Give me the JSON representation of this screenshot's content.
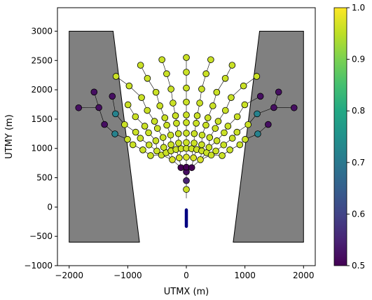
{
  "chart_data": {
    "type": "scatter",
    "title": "",
    "xlabel": "UTMX (m)",
    "ylabel": "UTMY (m)",
    "xlim": [
      -2200,
      2200
    ],
    "ylim": [
      -1000,
      3400
    ],
    "xticks": [
      -2000,
      -1000,
      0,
      1000,
      2000
    ],
    "xtick_labels": [
      "−2000",
      "−1000",
      "0",
      "1000",
      "2000"
    ],
    "yticks": [
      -1000,
      -500,
      0,
      500,
      1000,
      1500,
      2000,
      2500,
      3000
    ],
    "ytick_labels": [
      "−1000",
      "−500",
      "0",
      "500",
      "1000",
      "1500",
      "2000",
      "2500",
      "3000"
    ],
    "grid": false,
    "colorbar": {
      "colormap": "viridis",
      "range": [
        0.5,
        1.0
      ],
      "ticks": [
        0.5,
        0.6,
        0.7,
        0.8,
        0.9,
        1.0
      ],
      "tick_labels": [
        "0.5",
        "0.6",
        "0.7",
        "0.8",
        "0.9",
        "1.0"
      ],
      "placement": "right"
    },
    "polygons": [
      {
        "name": "left-block",
        "fill": "#808080",
        "points": [
          [
            -2000,
            3000
          ],
          [
            -1250,
            3000
          ],
          [
            -800,
            -600
          ],
          [
            -2000,
            -600
          ]
        ]
      },
      {
        "name": "right-block",
        "fill": "#808080",
        "points": [
          [
            1250,
            3000
          ],
          [
            2000,
            3000
          ],
          [
            2000,
            -600
          ],
          [
            800,
            -600
          ]
        ]
      }
    ],
    "well": {
      "x": 0,
      "y_top": -50,
      "y_bottom": -330,
      "color": "#000080"
    },
    "fan": {
      "origin": [
        0,
        150
      ],
      "rows": [
        {
          "radius": 150,
          "angles": [
            0
          ],
          "values": [
            0.96
          ]
        },
        {
          "radius": 300,
          "angles": [
            0
          ],
          "values": [
            0.55
          ]
        },
        {
          "radius": 450,
          "angles": [
            0
          ],
          "values": [
            0.52
          ]
        },
        {
          "radius": 530,
          "angles": [
            -10,
            0,
            10
          ],
          "values": [
            0.5,
            0.5,
            0.5
          ]
        },
        {
          "radius": 700,
          "angles": [
            -20,
            -10,
            0,
            10,
            20
          ],
          "values": [
            0.97,
            0.97,
            0.97,
            0.97,
            0.97
          ]
        },
        {
          "radius": 850,
          "angles": [
            -30,
            -24,
            -18,
            -12,
            -6,
            0,
            6,
            12,
            18,
            24,
            30
          ],
          "values": [
            0.96,
            0.96,
            0.96,
            0.96,
            0.96,
            0.96,
            0.96,
            0.96,
            0.96,
            0.96,
            0.96
          ]
        },
        {
          "radius": 950,
          "angles": [
            -40,
            -32,
            -24,
            -16,
            -8,
            0,
            8,
            16,
            24,
            32,
            40
          ],
          "values": [
            0.96,
            0.96,
            0.96,
            0.96,
            0.96,
            0.96,
            0.96,
            0.96,
            0.96,
            0.96,
            0.96
          ]
        },
        {
          "radius": 1110,
          "angles": [
            -42,
            -35,
            -28,
            -21,
            -14,
            -7,
            0,
            7,
            14,
            21,
            28,
            35,
            42
          ],
          "values": [
            0.96,
            0.96,
            0.96,
            0.96,
            0.96,
            0.96,
            0.96,
            0.96,
            0.96,
            0.96,
            0.96,
            0.96,
            0.96
          ]
        },
        {
          "radius": 1290,
          "angles": [
            -45,
            -37.5,
            -30,
            -22.5,
            -15,
            -7.5,
            0,
            7.5,
            15,
            22.5,
            30,
            37.5,
            45
          ],
          "values": [
            0.96,
            0.96,
            0.96,
            0.96,
            0.96,
            0.96,
            0.96,
            0.96,
            0.96,
            0.96,
            0.96,
            0.96,
            0.96
          ]
        },
        {
          "radius": 1420,
          "angles": [
            -45,
            -37.5,
            -30,
            -22.5,
            -15,
            -7.5,
            0,
            7.5,
            15,
            22.5,
            30,
            37.5,
            45
          ],
          "values": [
            0.96,
            0.96,
            0.96,
            0.96,
            0.96,
            0.96,
            0.96,
            0.96,
            0.96,
            0.96,
            0.96,
            0.96,
            0.96
          ]
        },
        {
          "radius": 1640,
          "angles": [
            -48,
            -40,
            -32,
            -24,
            -16,
            -8,
            0,
            8,
            16,
            24,
            32,
            40,
            48
          ],
          "values": [
            0.72,
            0.96,
            0.96,
            0.96,
            0.96,
            0.96,
            0.96,
            0.96,
            0.96,
            0.96,
            0.96,
            0.96,
            0.72
          ]
        },
        {
          "radius": 1880,
          "angles": [
            -48,
            -40,
            -32,
            -24,
            -16,
            -8,
            0,
            8,
            16,
            24,
            32,
            40,
            48
          ],
          "values": [
            0.52,
            0.72,
            0.96,
            0.96,
            0.96,
            0.96,
            0.96,
            0.96,
            0.96,
            0.96,
            0.96,
            0.72,
            0.52
          ]
        },
        {
          "radius": 2150,
          "angles": [
            -44,
            -36,
            -27,
            -18,
            -9,
            0,
            9,
            18,
            27,
            36,
            44
          ],
          "values": [
            0.52,
            0.52,
            0.96,
            0.96,
            0.96,
            0.96,
            0.96,
            0.96,
            0.96,
            0.52,
            0.52
          ]
        },
        {
          "radius": 2400,
          "angles": [
            -50,
            -41,
            -30,
            -19,
            -10,
            0,
            10,
            19,
            30,
            41,
            50
          ],
          "values": [
            0.52,
            0.52,
            0.96,
            0.96,
            0.96,
            0.96,
            0.96,
            0.96,
            0.96,
            0.52,
            0.52
          ]
        }
      ]
    }
  }
}
